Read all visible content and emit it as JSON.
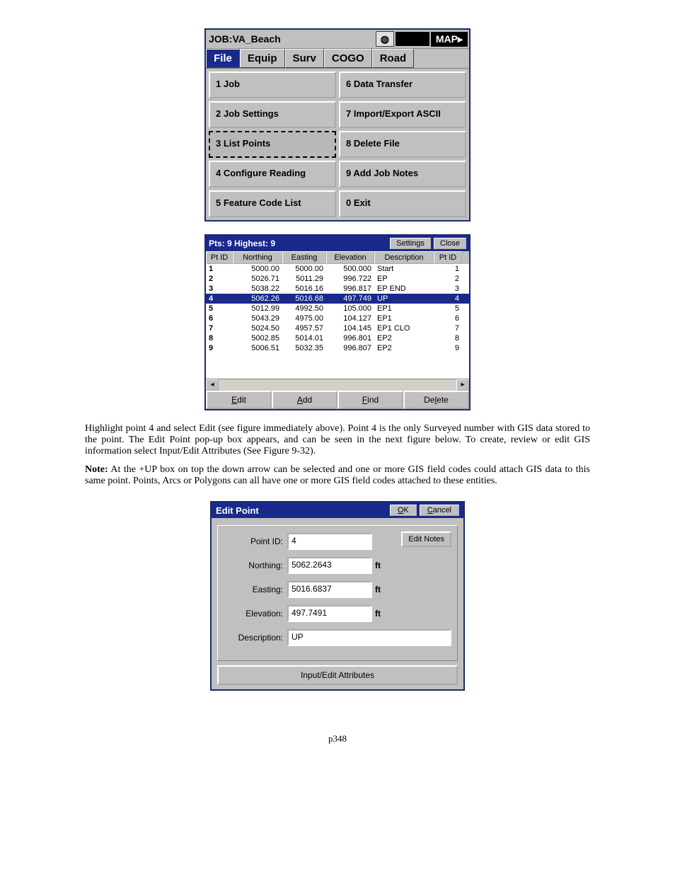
{
  "screenshot1": {
    "job_label": "JOB:VA_Beach",
    "map_btn": "MAP▸",
    "tabs": {
      "file": "File",
      "equip": "Equip",
      "surv": "Surv",
      "cogo": "COGO",
      "road": "Road"
    },
    "menu": {
      "c1": "1 Job",
      "c2": "2 Job Settings",
      "c3": "3 List Points",
      "c4": "4 Configure Reading",
      "c5": "5 Feature Code List",
      "c6": "6 Data Transfer",
      "c7": "7 Import/Export ASCII",
      "c8": "8 Delete File",
      "c9": "9 Add Job Notes",
      "c0": "0 Exit"
    },
    "selected_index": 3
  },
  "screenshot2": {
    "title": "Pts: 9 Highest: 9",
    "settings_btn": "Settings",
    "close_btn": "Close",
    "columns": [
      "Pt ID",
      "Northing",
      "Easting",
      "Elevation",
      "Description",
      "Pt ID"
    ],
    "rows": [
      {
        "c0": "1",
        "c1": "5000.00",
        "c2": "5000.00",
        "c3": "500.000",
        "c4": "Start",
        "c5": "1"
      },
      {
        "c0": "2",
        "c1": "5026.71",
        "c2": "5011.29",
        "c3": "996.722",
        "c4": "EP",
        "c5": "2"
      },
      {
        "c0": "3",
        "c1": "5038.22",
        "c2": "5016.16",
        "c3": "996.817",
        "c4": "EP END",
        "c5": "3"
      },
      {
        "c0": "4",
        "c1": "5062.26",
        "c2": "5016.68",
        "c3": "497.749",
        "c4": "UP",
        "c5": "4"
      },
      {
        "c0": "5",
        "c1": "5012.99",
        "c2": "4992.50",
        "c3": "105.000",
        "c4": "EP1",
        "c5": "5"
      },
      {
        "c0": "6",
        "c1": "5043.29",
        "c2": "4975.00",
        "c3": "104.127",
        "c4": "EP1",
        "c5": "6"
      },
      {
        "c0": "7",
        "c1": "5024.50",
        "c2": "4957.57",
        "c3": "104.145",
        "c4": "EP1 CLO",
        "c5": "7"
      },
      {
        "c0": "8",
        "c1": "5002.85",
        "c2": "5014.01",
        "c3": "996.801",
        "c4": "EP2",
        "c5": "8"
      },
      {
        "c0": "9",
        "c1": "5006.51",
        "c2": "5032.35",
        "c3": "996.807",
        "c4": "EP2",
        "c5": "9"
      }
    ],
    "selected_row": 4,
    "buttons": {
      "edit": {
        "u": "E",
        "rest": "dit"
      },
      "add": {
        "u": "A",
        "rest": "dd"
      },
      "find": {
        "u": "F",
        "rest": "ind"
      },
      "delete": {
        "pre": "De",
        "u": "l",
        "rest": "ete"
      }
    }
  },
  "para1": "Highlight point 4 and select Edit (see figure immediately above). Point 4 is the only Surveyed number with GIS data stored to the point.  The Edit Point pop-up box appears, and can be seen in the next figure below.  To create, review or edit GIS information select Input/Edit Attributes (See Figure 9-32).",
  "note_bold": "Note:",
  "note_rest": "  At the +UP box on top the down arrow can be selected and one or more GIS field codes could attach GIS data to this same point.  Points, Arcs or Polygons can all have one or more GIS field codes attached to these entities.",
  "screenshot3": {
    "title": "Edit Point",
    "ok_btn": {
      "u": "O",
      "rest": "K"
    },
    "cancel_btn": {
      "u": "C",
      "rest": "ancel"
    },
    "edit_notes_btn": "Edit Notes",
    "fields": {
      "point_id": {
        "label": "Point ID:",
        "value": "4"
      },
      "northing": {
        "label": "Northing:",
        "value": "5062.2643",
        "unit": "ft"
      },
      "easting": {
        "label": "Easting:",
        "value": "5016.6837",
        "unit": "ft"
      },
      "elevation": {
        "label": "Elevation:",
        "value": "497.7491",
        "unit": "ft"
      },
      "description": {
        "label": "Description:",
        "value": "UP"
      }
    },
    "attributes_btn": "Input/Edit Attributes"
  },
  "page_number": "p348"
}
